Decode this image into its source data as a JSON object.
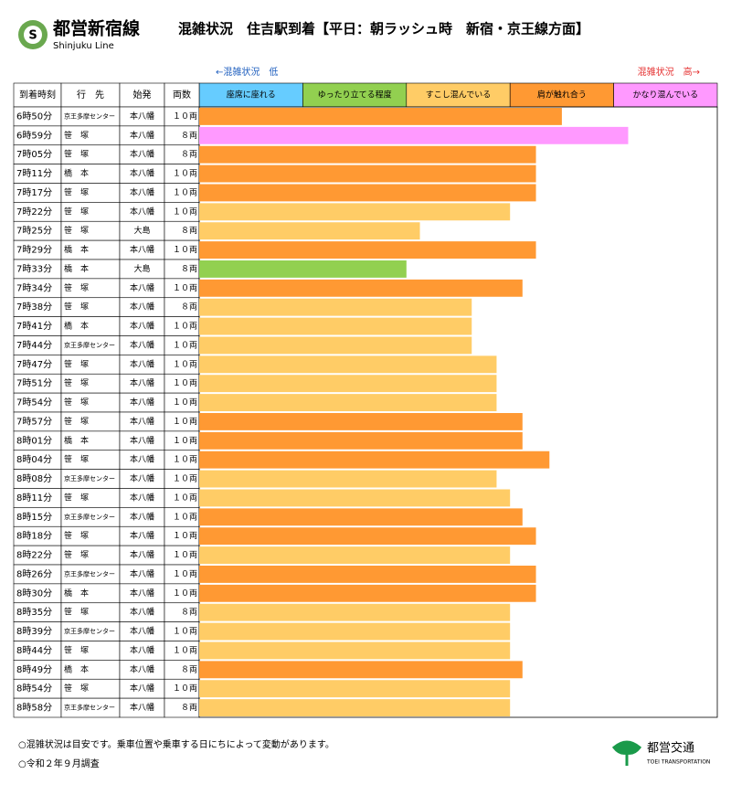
{
  "header": {
    "logo_letter": "S",
    "line_name": "都営新宿線",
    "line_name_en": "Shinjuku Line",
    "title": "混雑状況　住吉駅到着【平日：朝ラッシュ時　新宿・京王線方面】"
  },
  "scale_low": "←混雑状況　低",
  "scale_high": "混雑状況　高→",
  "table": {
    "columns": [
      "到着時刻",
      "行　先",
      "始発",
      "両数"
    ],
    "rows": [
      [
        "6時50分",
        "京王多摩センター",
        "本八幡",
        "１０両"
      ],
      [
        "6時59分",
        "笹　塚",
        "本八幡",
        "８両"
      ],
      [
        "7時05分",
        "笹　塚",
        "本八幡",
        "８両"
      ],
      [
        "7時11分",
        "橋　本",
        "本八幡",
        "１０両"
      ],
      [
        "7時17分",
        "笹　塚",
        "本八幡",
        "１０両"
      ],
      [
        "7時22分",
        "笹　塚",
        "本八幡",
        "１０両"
      ],
      [
        "7時25分",
        "笹　塚",
        "大島",
        "８両"
      ],
      [
        "7時29分",
        "橋　本",
        "本八幡",
        "１０両"
      ],
      [
        "7時33分",
        "橋　本",
        "大島",
        "８両"
      ],
      [
        "7時34分",
        "笹　塚",
        "本八幡",
        "１０両"
      ],
      [
        "7時38分",
        "笹　塚",
        "本八幡",
        "８両"
      ],
      [
        "7時41分",
        "橋　本",
        "本八幡",
        "１０両"
      ],
      [
        "7時44分",
        "京王多摩センター",
        "本八幡",
        "１０両"
      ],
      [
        "7時47分",
        "笹　塚",
        "本八幡",
        "１０両"
      ],
      [
        "7時51分",
        "笹　塚",
        "本八幡",
        "１０両"
      ],
      [
        "7時54分",
        "笹　塚",
        "本八幡",
        "１０両"
      ],
      [
        "7時57分",
        "笹　塚",
        "本八幡",
        "１０両"
      ],
      [
        "8時01分",
        "橋　本",
        "本八幡",
        "１０両"
      ],
      [
        "8時04分",
        "笹　塚",
        "本八幡",
        "１０両"
      ],
      [
        "8時08分",
        "京王多摩センター",
        "本八幡",
        "１０両"
      ],
      [
        "8時11分",
        "笹　塚",
        "本八幡",
        "１０両"
      ],
      [
        "8時15分",
        "京王多摩センター",
        "本八幡",
        "１０両"
      ],
      [
        "8時18分",
        "笹　塚",
        "本八幡",
        "１０両"
      ],
      [
        "8時22分",
        "笹　塚",
        "本八幡",
        "１０両"
      ],
      [
        "8時26分",
        "京王多摩センター",
        "本八幡",
        "１０両"
      ],
      [
        "8時30分",
        "橋　本",
        "本八幡",
        "１０両"
      ],
      [
        "8時35分",
        "笹　塚",
        "本八幡",
        "８両"
      ],
      [
        "8時39分",
        "京王多摩センター",
        "本八幡",
        "１０両"
      ],
      [
        "8時44分",
        "笹　塚",
        "本八幡",
        "１０両"
      ],
      [
        "8時49分",
        "橋　本",
        "本八幡",
        "８両"
      ],
      [
        "8時54分",
        "笹　塚",
        "本八幡",
        "１０両"
      ],
      [
        "8時58分",
        "京王多摩センター",
        "本八幡",
        "８両"
      ]
    ]
  },
  "chart_data": {
    "type": "bar",
    "xlim": [
      0,
      5
    ],
    "legend": [
      {
        "name": "座席に座れる",
        "color": "#66ccff"
      },
      {
        "name": "ゆったり立てる程度",
        "color": "#92d050"
      },
      {
        "name": "すこし混んでいる",
        "color": "#ffcc66"
      },
      {
        "name": "肩が触れ合う",
        "color": "#ff9933"
      },
      {
        "name": "かなり混んでいる",
        "color": "#ff99ff"
      }
    ],
    "values": [
      3.5,
      4.14,
      3.25,
      3.25,
      3.25,
      3.0,
      2.13,
      3.25,
      2.0,
      3.12,
      2.63,
      2.63,
      2.63,
      2.87,
      2.87,
      2.87,
      3.12,
      3.12,
      3.38,
      2.87,
      3.0,
      3.12,
      3.25,
      3.0,
      3.25,
      3.25,
      3.0,
      3.0,
      3.0,
      3.12,
      3.0,
      3.0
    ],
    "levels": [
      3,
      4,
      3,
      3,
      3,
      2,
      2,
      3,
      1,
      3,
      2,
      2,
      2,
      2,
      2,
      2,
      3,
      3,
      3,
      2,
      2,
      3,
      3,
      2,
      3,
      3,
      2,
      2,
      2,
      3,
      2,
      2
    ]
  },
  "notes": [
    "○混雑状況は目安です。乗車位置や乗車する日にちによって変動があります。",
    "○令和２年９月調査"
  ],
  "footer": {
    "brand": "都営交通",
    "brand_en": "TOEI TRANSPORTATION"
  }
}
